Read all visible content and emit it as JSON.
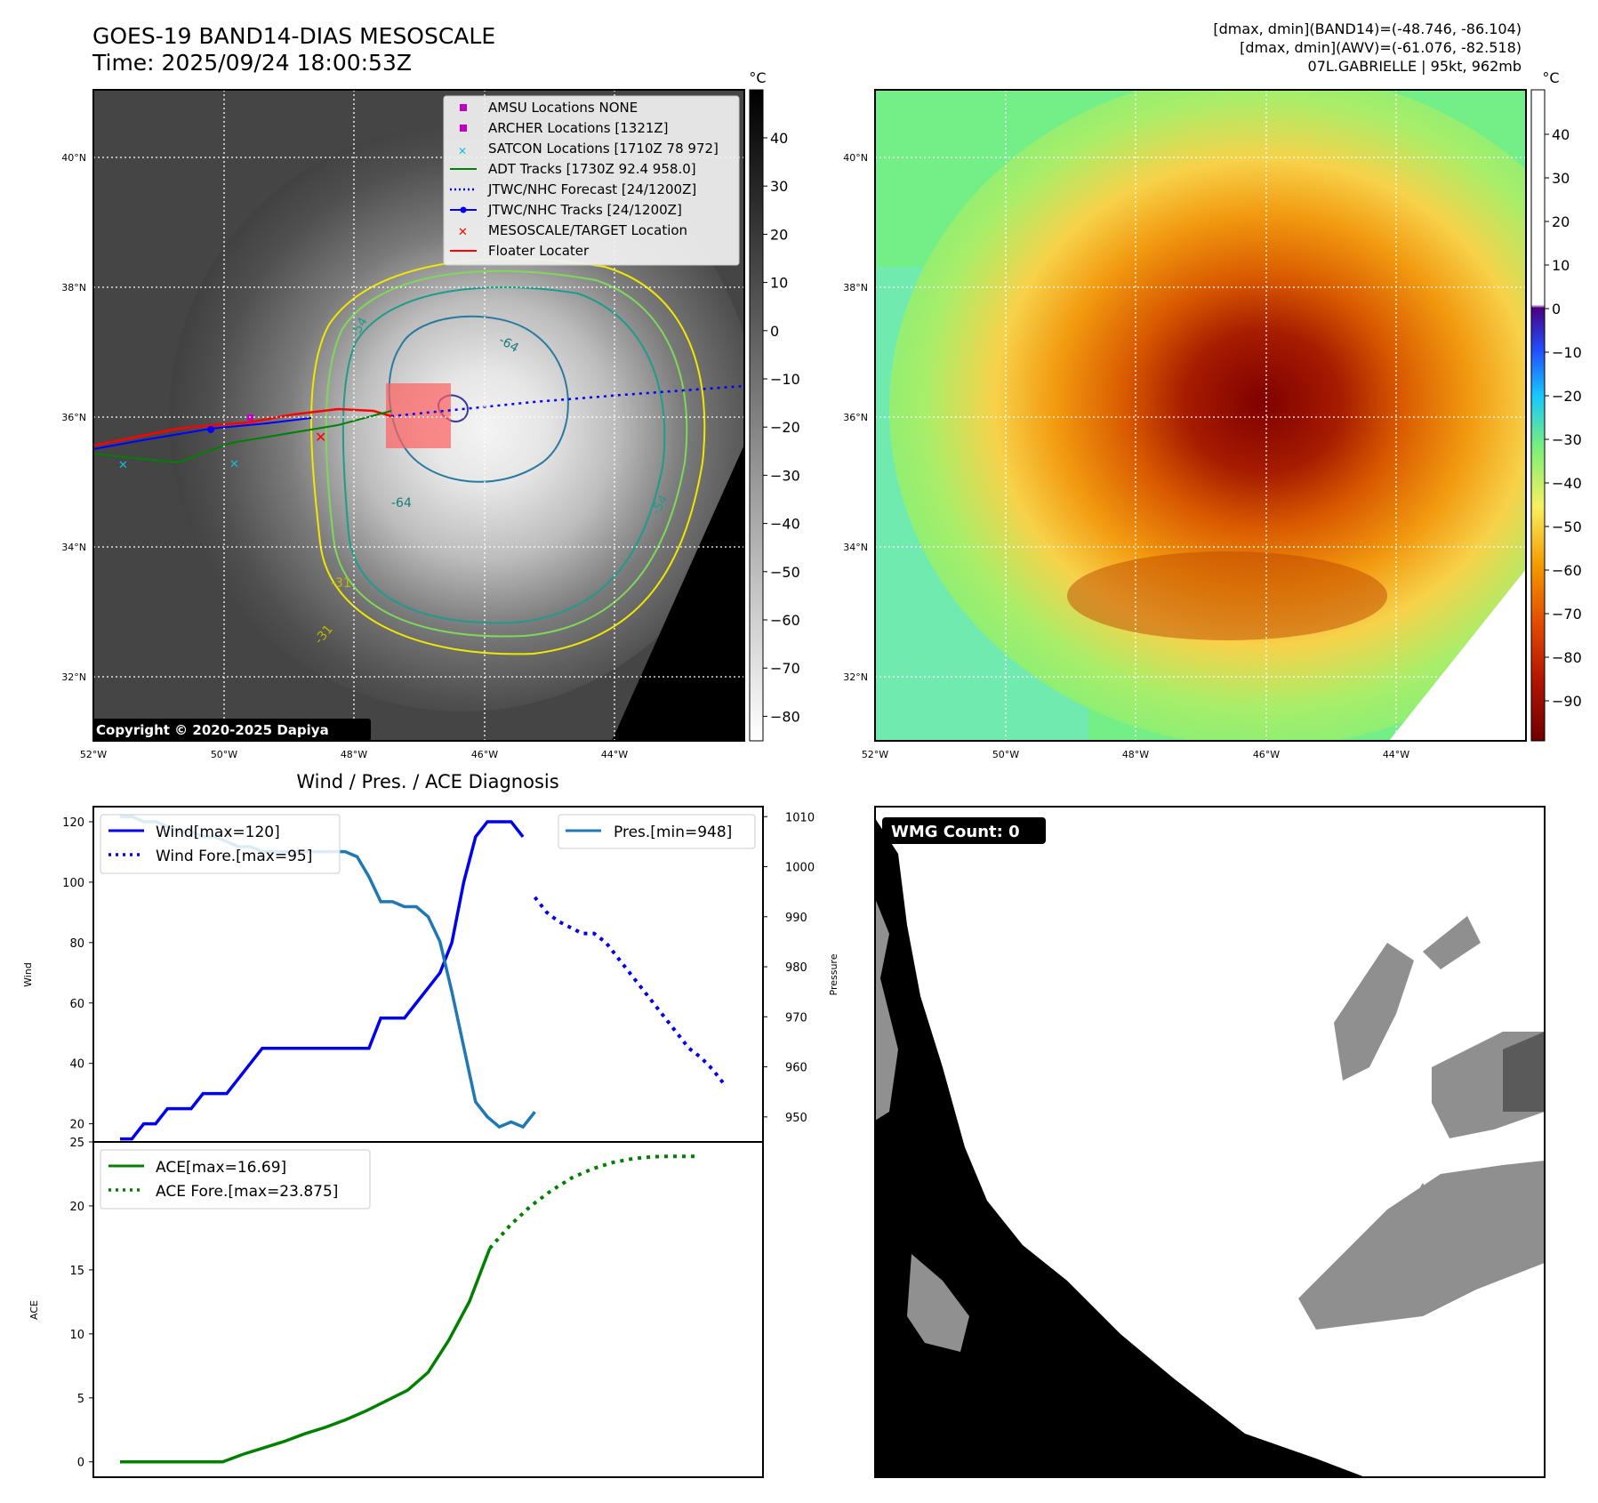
{
  "header": {
    "title": "GOES-19 BAND14-DIAS MESOSCALE",
    "time": "Time: 2025/09/24 18:00:53Z",
    "dmax_band14": "[dmax, dmin](BAND14)=(-48.746, -86.104)",
    "dmax_awv": "[dmax, dmin](AWV)=(-61.076, -82.518)",
    "storm_info": "07L.GABRIELLE | 95kt, 962mb"
  },
  "map_axes": {
    "lat_labels": [
      "40°N",
      "38°N",
      "36°N",
      "34°N",
      "32°N"
    ],
    "lon_labels": [
      "52°W",
      "50°W",
      "48°W",
      "46°W",
      "44°W"
    ]
  },
  "ir_panel": {
    "copyright": "Copyright © 2020-2025 Dapiya",
    "colorbar_unit": "°C",
    "colorbar_ticks": [
      "40",
      "30",
      "20",
      "10",
      "0",
      "−10",
      "−20",
      "−30",
      "−40",
      "−50",
      "−60",
      "−70",
      "−80"
    ],
    "contour_labels": [
      "-64",
      "-54",
      "-64",
      "-54",
      "-31",
      "-31",
      "-54",
      "-64",
      "-54",
      "-54"
    ],
    "legend": [
      {
        "label": "AMSU Locations NONE",
        "marker": "square",
        "color": "#c000c0"
      },
      {
        "label": "ARCHER Locations [1321Z]",
        "marker": "square",
        "color": "#c000c0"
      },
      {
        "label": "SATCON Locations [1710Z 78 972]",
        "marker": "x",
        "color": "#17becf"
      },
      {
        "label": "ADT Tracks [1730Z 92.4 958.0]",
        "marker": "line",
        "color": "#008000"
      },
      {
        "label": "JTWC/NHC Forecast [24/1200Z]",
        "marker": "dotted",
        "color": "#0000ff"
      },
      {
        "label": "JTWC/NHC Tracks [24/1200Z]",
        "marker": "line-dot",
        "color": "#0000ff"
      },
      {
        "label": "MESOSCALE/TARGET Location",
        "marker": "x",
        "color": "#ff0000"
      },
      {
        "label": "Floater Locater",
        "marker": "line",
        "color": "#ff0000"
      }
    ]
  },
  "awv_panel": {
    "colorbar_unit": "°C",
    "colorbar_ticks": [
      "40",
      "30",
      "20",
      "10",
      "0",
      "−10",
      "−20",
      "−30",
      "−40",
      "−50",
      "−60",
      "−70",
      "−80",
      "−90"
    ]
  },
  "wmg_panel": {
    "badge": "WMG Count: 0"
  },
  "chart_data": [
    {
      "type": "line",
      "title": "Wind / Pres. / ACE Diagnosis",
      "ylabel": "Wind",
      "y2label": "Pressure",
      "ylim": [
        14,
        125
      ],
      "y2lim": [
        945,
        1012
      ],
      "yticks": [
        "120",
        "100",
        "80",
        "60",
        "40",
        "20"
      ],
      "y2ticks": [
        "1010",
        "1000",
        "990",
        "980",
        "970",
        "960",
        "950"
      ],
      "legend_left": [
        "Wind[max=120]",
        "Wind Fore.[max=95]"
      ],
      "legend_right": [
        "Pres.[min=948]"
      ],
      "series": [
        {
          "name": "Wind[max=120]",
          "color": "#0000ee",
          "style": "solid",
          "axis": "left",
          "x": [
            0,
            1,
            2,
            3,
            4,
            5,
            6,
            7,
            8,
            9,
            10,
            11,
            12,
            13,
            14,
            15,
            16,
            17,
            18,
            19,
            20,
            21,
            22,
            23,
            24,
            25,
            26,
            27,
            28,
            29,
            30,
            31,
            32,
            33,
            34
          ],
          "values": [
            15,
            15,
            20,
            20,
            25,
            25,
            25,
            30,
            30,
            30,
            35,
            40,
            45,
            45,
            45,
            45,
            45,
            45,
            45,
            45,
            45,
            45,
            55,
            55,
            55,
            60,
            65,
            70,
            80,
            100,
            115,
            120,
            120,
            120,
            115
          ]
        },
        {
          "name": "Wind Fore.[max=95]",
          "color": "#0000ee",
          "style": "dotted",
          "axis": "left",
          "x": [
            35,
            36,
            37,
            38,
            39,
            40,
            41,
            42,
            43,
            44,
            45,
            46,
            47,
            48,
            49,
            50,
            51
          ],
          "values": [
            95,
            90,
            87,
            85,
            83,
            83,
            80,
            75,
            70,
            65,
            60,
            55,
            50,
            45,
            42,
            38,
            33
          ]
        },
        {
          "name": "Pres.[min=948]",
          "color": "#1f77b4",
          "style": "solid",
          "axis": "right",
          "x": [
            0,
            1,
            2,
            3,
            4,
            5,
            6,
            7,
            8,
            9,
            10,
            11,
            12,
            13,
            14,
            15,
            16,
            17,
            18,
            19,
            20,
            21,
            22,
            23,
            24,
            25,
            26,
            27,
            28,
            29,
            30,
            31,
            32,
            33,
            34,
            35
          ],
          "values": [
            1010,
            1010,
            1009,
            1009,
            1008,
            1007,
            1007,
            1006,
            1006,
            1005,
            1004,
            1004,
            1003,
            1003,
            1003,
            1003,
            1003,
            1003,
            1003,
            1003,
            1002,
            998,
            993,
            993,
            992,
            992,
            990,
            985,
            975,
            964,
            953,
            950,
            948,
            949,
            948,
            951
          ]
        }
      ]
    },
    {
      "type": "line",
      "ylabel": "ACE",
      "ylim": [
        -1.2,
        25
      ],
      "yticks": [
        "25",
        "20",
        "15",
        "10",
        "5",
        "0"
      ],
      "legend": [
        "ACE[max=16.69]",
        "ACE Fore.[max=23.875]"
      ],
      "series": [
        {
          "name": "ACE[max=16.69]",
          "color": "#008000",
          "style": "solid",
          "x": [
            0,
            2,
            4,
            6,
            8,
            10,
            12,
            14,
            16,
            18,
            20,
            22,
            24,
            26,
            28,
            30,
            32,
            34,
            36
          ],
          "values": [
            0,
            0,
            0,
            0,
            0,
            0,
            0.6,
            1.1,
            1.6,
            2.2,
            2.7,
            3.3,
            4.0,
            4.8,
            5.6,
            7.0,
            9.5,
            12.5,
            16.69
          ]
        },
        {
          "name": "ACE Fore.[max=23.875]",
          "color": "#008000",
          "style": "dotted",
          "x": [
            36,
            38,
            40,
            42,
            44,
            46,
            48,
            50,
            52,
            54,
            56
          ],
          "values": [
            16.69,
            18.5,
            20.0,
            21.2,
            22.2,
            22.9,
            23.4,
            23.7,
            23.85,
            23.875,
            23.875
          ]
        }
      ]
    }
  ]
}
